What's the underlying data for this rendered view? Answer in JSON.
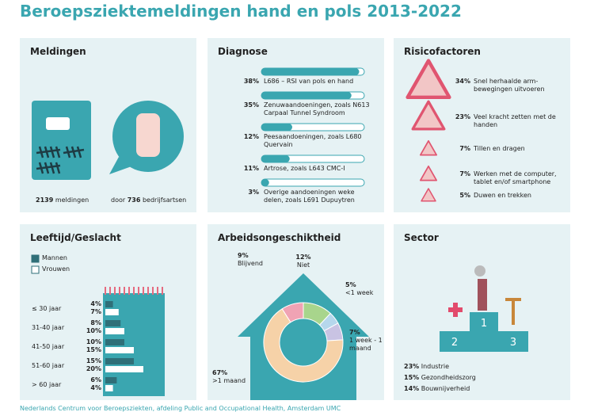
{
  "title": "Beroepsziektemeldingen hand en pols 2013-2022",
  "meldingen": {
    "title": "Meldingen",
    "count": 2139,
    "count_text": "meldingen",
    "doctors_prefix": "door",
    "doctors": 736,
    "doctors_text": "bedrijfsartsen"
  },
  "diagnose": {
    "title": "Diagnose",
    "items": [
      {
        "value": 38,
        "value_label": "38%",
        "text": "L686 – RSI van pols en hand"
      },
      {
        "value": 35,
        "value_label": "35%",
        "text": "Zenuwaandoeningen, zoals N613 Carpaal Tunnel Syndroom"
      },
      {
        "value": 12,
        "value_label": "12%",
        "text": "Peesaandoeningen, zoals L680 Quervain"
      },
      {
        "value": 11,
        "value_label": "11%",
        "text": "Artrose, zoals L643 CMC-I"
      },
      {
        "value": 3,
        "value_label": "3%",
        "text": "Overige aandoeningen weke delen, zoals L691 Dupuytren"
      }
    ]
  },
  "risicofactoren": {
    "title": "Risicofactoren",
    "items": [
      {
        "value": 34,
        "value_label": "34%",
        "text": "Snel herhaalde arm-bewegingen uitvoeren"
      },
      {
        "value": 23,
        "value_label": "23%",
        "text": "Veel kracht zetten met de handen"
      },
      {
        "value": 7,
        "value_label": "7%",
        "text": "Tillen en dragen"
      },
      {
        "value": 7,
        "value_label": "7%",
        "text": "Werken met de computer, tablet en/of smartphone"
      },
      {
        "value": 5,
        "value_label": "5%",
        "text": "Duwen en trekken"
      }
    ]
  },
  "leeftijd": {
    "title": "Leeftijd/Geslacht",
    "legend": [
      "Mannen",
      "Vrouwen"
    ],
    "groups": [
      {
        "label": "≤ 30 jaar",
        "values": [
          4,
          7
        ],
        "value_labels": [
          "4%",
          "7%"
        ]
      },
      {
        "label": "31-40 jaar",
        "values": [
          8,
          10
        ],
        "value_labels": [
          "8%",
          "10%"
        ]
      },
      {
        "label": "41-50 jaar",
        "values": [
          10,
          15
        ],
        "value_labels": [
          "10%",
          "15%"
        ]
      },
      {
        "label": "51-60 jaar",
        "values": [
          15,
          20
        ],
        "value_labels": [
          "15%",
          "20%"
        ]
      },
      {
        "label": "> 60 jaar",
        "values": [
          6,
          4
        ],
        "value_labels": [
          "6%",
          "4%"
        ]
      }
    ]
  },
  "arbeid": {
    "title": "Arbeidsongeschiktheid",
    "items": [
      {
        "name": "Niet",
        "value": 12,
        "value_label": "12%",
        "color": "#a8d58c"
      },
      {
        "name": "<1 week",
        "value": 5,
        "value_label": "5%",
        "color": "#b6d7ec"
      },
      {
        "name": "1 week - 1 maand",
        "value": 7,
        "value_label": "7%",
        "color": "#c9c3e3"
      },
      {
        "name": ">1 maand",
        "value": 67,
        "value_label": "67%",
        "color": "#f6d2a8"
      },
      {
        "name": "Blijvend",
        "value": 9,
        "value_label": "9%",
        "color": "#f0a3b4"
      }
    ]
  },
  "sector": {
    "title": "Sector",
    "podium": [
      1,
      2,
      3
    ],
    "items": [
      {
        "value": 23,
        "value_label": "23%",
        "name": "Industrie"
      },
      {
        "value": 15,
        "value_label": "15%",
        "name": "Gezondheidszorg"
      },
      {
        "value": 14,
        "value_label": "14%",
        "name": "Bouwnijverheid"
      }
    ]
  },
  "footer": "Nederlands Centrum voor Beroepsziekten, afdeling Public and Occupational Health, Amsterdam UMC"
}
